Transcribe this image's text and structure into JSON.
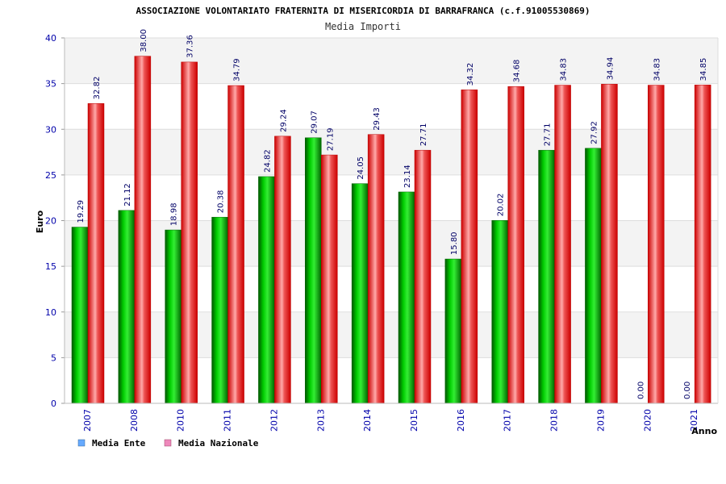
{
  "chart_data": {
    "type": "bar",
    "title": "ASSOCIAZIONE VOLONTARIATO FRATERNITA DI MISERICORDIA DI BARRAFRANCA (c.f.91005530869)",
    "subtitle": "Media Importi",
    "xlabel": "Anno",
    "ylabel": "Euro",
    "ylim": [
      0,
      40
    ],
    "yticks": [
      0,
      5,
      10,
      15,
      20,
      25,
      30,
      35,
      40
    ],
    "categories": [
      "2007",
      "2008",
      "2010",
      "2011",
      "2012",
      "2013",
      "2014",
      "2015",
      "2016",
      "2017",
      "2018",
      "2019",
      "2020",
      "2021"
    ],
    "series": [
      {
        "name": "Media Ente",
        "values": [
          19.29,
          21.12,
          18.98,
          20.38,
          24.82,
          29.07,
          24.05,
          23.14,
          15.8,
          20.02,
          27.71,
          27.92,
          0.0,
          0.0
        ],
        "labels": [
          "19.29",
          "21.12",
          "18.98",
          "20.38",
          "24.82",
          "29.07",
          "24.05",
          "23.14",
          "15.80",
          "20.02",
          "27.71",
          "27.92",
          "0.00",
          "0.00"
        ],
        "color": "#00aa00",
        "legend_color": "#66aaff"
      },
      {
        "name": "Media Nazionale",
        "values": [
          32.82,
          38.0,
          37.36,
          34.79,
          29.24,
          27.19,
          29.43,
          27.71,
          34.32,
          34.68,
          34.83,
          34.94,
          34.83,
          34.85
        ],
        "labels": [
          "32.82",
          "38.00",
          "37.36",
          "34.79",
          "29.24",
          "27.19",
          "29.43",
          "27.71",
          "34.32",
          "34.68",
          "34.83",
          "34.94",
          "34.83",
          "34.85"
        ],
        "color": "#ee1111",
        "legend_color": "#ee88bb"
      }
    ],
    "grid": true,
    "legend_position": "bottom-left"
  }
}
